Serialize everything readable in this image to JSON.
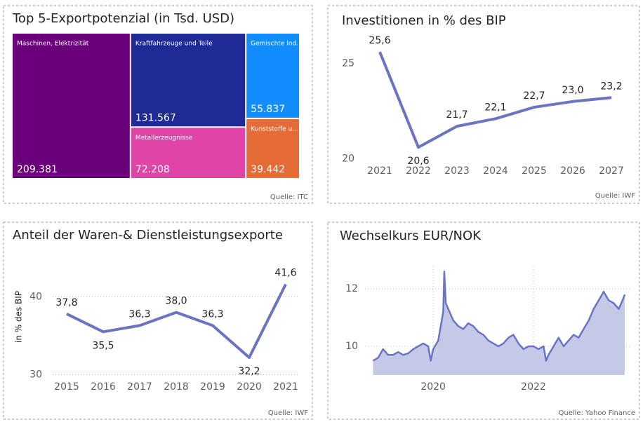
{
  "chart_data": [
    {
      "type": "treemap",
      "title": "Top 5-Exportpotenzial (in Tsd. USD)",
      "categories": [
        "Maschinen, Elektrizität",
        "Kraftfahrzeuge und Teile",
        "Metallerzeugnisse",
        "Gemischte Ind...",
        "Kunststoffe u..."
      ],
      "values": [
        209381,
        131567,
        72208,
        55837,
        39442
      ],
      "value_labels": [
        "209.381",
        "131.567",
        "72.208",
        "55.837",
        "39.442"
      ],
      "colors": [
        "#6b007b",
        "#1f2a96",
        "#e044a7",
        "#118dff",
        "#e66c37"
      ],
      "source": "Quelle: ITC"
    },
    {
      "type": "line",
      "title": "Investitionen in % des BIP",
      "categories": [
        "2021",
        "2022",
        "2023",
        "2024",
        "2025",
        "2026",
        "2027"
      ],
      "values": [
        25.6,
        20.6,
        21.7,
        22.1,
        22.7,
        23.0,
        23.2
      ],
      "value_labels": [
        "25,6",
        "20,6",
        "21,7",
        "22,1",
        "22,7",
        "23,0",
        "23,2"
      ],
      "color": "#6b74c4",
      "ylim": [
        19.5,
        26.3
      ],
      "yticks": [
        20,
        25
      ],
      "grid": false,
      "source": "Quelle: IWF"
    },
    {
      "type": "line",
      "title": "Anteil der Waren-& Dienstleistungsexporte",
      "y_label": "in % des BIP",
      "categories": [
        "2015",
        "2016",
        "2017",
        "2018",
        "2019",
        "2020",
        "2021"
      ],
      "values": [
        37.8,
        35.5,
        36.3,
        38.0,
        36.3,
        32.2,
        41.6
      ],
      "value_labels": [
        "37,8",
        "35,5",
        "36,3",
        "38,0",
        "36,3",
        "32,2",
        "41,6"
      ],
      "color": "#6b74c4",
      "ylim": [
        29.5,
        44.8
      ],
      "yticks": [
        30,
        40
      ],
      "grid": true,
      "source": "Quelle: IWF"
    },
    {
      "type": "area",
      "title": "Wechselkurs EUR/NOK",
      "x": [
        2018.8,
        2018.9,
        2019.0,
        2019.1,
        2019.2,
        2019.3,
        2019.4,
        2019.5,
        2019.6,
        2019.7,
        2019.8,
        2019.9,
        2019.95,
        2020.0,
        2020.1,
        2020.2,
        2020.22,
        2020.25,
        2020.3,
        2020.4,
        2020.5,
        2020.6,
        2020.7,
        2020.8,
        2020.9,
        2021.0,
        2021.1,
        2021.2,
        2021.3,
        2021.4,
        2021.5,
        2021.6,
        2021.7,
        2021.8,
        2021.9,
        2022.0,
        2022.1,
        2022.2,
        2022.25,
        2022.3,
        2022.4,
        2022.5,
        2022.6,
        2022.7,
        2022.8,
        2022.9,
        2023.0,
        2023.1,
        2023.2,
        2023.3,
        2023.4,
        2023.5,
        2023.6,
        2023.7,
        2023.8,
        2023.82
      ],
      "values": [
        9.5,
        9.6,
        9.9,
        9.7,
        9.7,
        9.8,
        9.7,
        9.75,
        9.9,
        10.0,
        10.1,
        10.0,
        9.5,
        9.9,
        10.2,
        11.2,
        12.6,
        11.5,
        11.3,
        10.9,
        10.7,
        10.6,
        10.8,
        10.7,
        10.5,
        10.4,
        10.2,
        10.1,
        10.0,
        10.1,
        10.3,
        10.4,
        10.1,
        9.9,
        10.0,
        10.0,
        9.9,
        10.0,
        9.5,
        9.7,
        10.0,
        10.3,
        10.0,
        10.2,
        10.4,
        10.3,
        10.6,
        10.9,
        11.3,
        11.6,
        11.9,
        11.6,
        11.5,
        11.3,
        11.7,
        11.8
      ],
      "color": "#6b74c4",
      "fill": "#c5c9e8",
      "xlim": [
        2018.64,
        2023.96
      ],
      "xticks": [
        2020,
        2022
      ],
      "ylim": [
        9,
        12.78
      ],
      "yticks": [
        10,
        12
      ],
      "grid": true,
      "source": "Quelle: Yahoo Finance"
    }
  ]
}
